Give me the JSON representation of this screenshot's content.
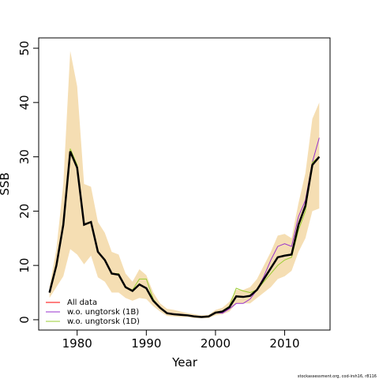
{
  "chart_data": {
    "type": "line",
    "x_label": "Year",
    "y_label": "SSB",
    "footer": "stockassessment.org, cod-irsh16, r8116",
    "x": [
      1976,
      1977,
      1978,
      1979,
      1980,
      1981,
      1982,
      1983,
      1984,
      1985,
      1986,
      1987,
      1988,
      1989,
      1990,
      1991,
      1992,
      1993,
      1994,
      1995,
      1996,
      1997,
      1998,
      1999,
      2000,
      2001,
      2002,
      2003,
      2004,
      2005,
      2006,
      2007,
      2008,
      2009,
      2010,
      2011,
      2012,
      2013,
      2014,
      2015
    ],
    "band": {
      "color": "#f5deb3",
      "upper": [
        6,
        13,
        25,
        49.5,
        43,
        25,
        24.5,
        18,
        16,
        12.5,
        12,
        8.5,
        7,
        9.3,
        8.2,
        5,
        3,
        2,
        1.8,
        1.5,
        1.2,
        1,
        0.8,
        0.9,
        1.8,
        2.2,
        3.3,
        5.5,
        5.5,
        6,
        7.5,
        10,
        12.5,
        15.5,
        15.8,
        15,
        21.5,
        27,
        37,
        40
      ],
      "lower": [
        4,
        6,
        8,
        13,
        12,
        10.2,
        11.8,
        7.8,
        7,
        5,
        5,
        4,
        3.5,
        4,
        3.8,
        2.5,
        1.5,
        0.7,
        0.6,
        0.5,
        0.5,
        0.3,
        0.3,
        0.3,
        0.8,
        1,
        1.5,
        3,
        3,
        3,
        4,
        5,
        6,
        7.5,
        8,
        9,
        12.5,
        15,
        20,
        20.5
      ]
    },
    "series": [
      {
        "name": "All data",
        "color": "#ff0000",
        "values": [
          5,
          10,
          17.5,
          31,
          28,
          17.5,
          18,
          12.5,
          11,
          8.5,
          8.3,
          6,
          5.3,
          6.5,
          5.8,
          3.5,
          2.2,
          1.2,
          1.0,
          0.9,
          0.8,
          0.6,
          0.5,
          0.6,
          1.3,
          1.5,
          2.3,
          4.3,
          4.2,
          4.4,
          5.5,
          7.5,
          9.5,
          11.5,
          11.8,
          12,
          17.5,
          21,
          28.5,
          30
        ]
      },
      {
        "name": "w.o. ungtorsk (1B)",
        "color": "#9932cc",
        "values": [
          5,
          10,
          17.5,
          31,
          28,
          17.5,
          18,
          12.5,
          11,
          8.5,
          8.3,
          6,
          5.3,
          6.5,
          5.8,
          3.5,
          2.2,
          1.3,
          1.1,
          1.0,
          0.8,
          0.6,
          0.5,
          0.6,
          1.3,
          1.2,
          2,
          3,
          3,
          3.8,
          5.5,
          8,
          11,
          13.5,
          14,
          13.5,
          19,
          22,
          29,
          33.5
        ]
      },
      {
        "name": "w.o. ungtorsk (1D)",
        "color": "#9acd32",
        "values": [
          5,
          10,
          17.5,
          31.5,
          28.5,
          17.5,
          18,
          12.5,
          11,
          8.5,
          8.5,
          6,
          5.5,
          7.5,
          7.5,
          3.8,
          2.2,
          1.2,
          1.0,
          0.9,
          0.8,
          0.6,
          0.5,
          0.6,
          1.4,
          1.6,
          2.5,
          5.8,
          5.3,
          5,
          5.5,
          7,
          8.5,
          10,
          11,
          11.5,
          16.5,
          20,
          29,
          30
        ]
      },
      {
        "color": "#000000",
        "values": [
          5,
          10,
          17.5,
          31,
          28,
          17.5,
          18,
          12.5,
          11,
          8.5,
          8.3,
          6,
          5.3,
          6.5,
          5.8,
          3.5,
          2.2,
          1.2,
          1.0,
          0.9,
          0.8,
          0.6,
          0.5,
          0.6,
          1.3,
          1.5,
          2.3,
          4.3,
          4.2,
          4.4,
          5.5,
          7.5,
          9.5,
          11.5,
          11.8,
          12,
          17.5,
          21,
          28.5,
          30
        ]
      }
    ],
    "xlim": [
      1974.44,
      2016.56
    ],
    "ylim": [
      -1.9,
      51.9
    ],
    "xticks": [
      1980,
      1990,
      2000,
      2010
    ],
    "yticks": [
      0,
      10,
      20,
      30,
      40,
      50
    ]
  }
}
